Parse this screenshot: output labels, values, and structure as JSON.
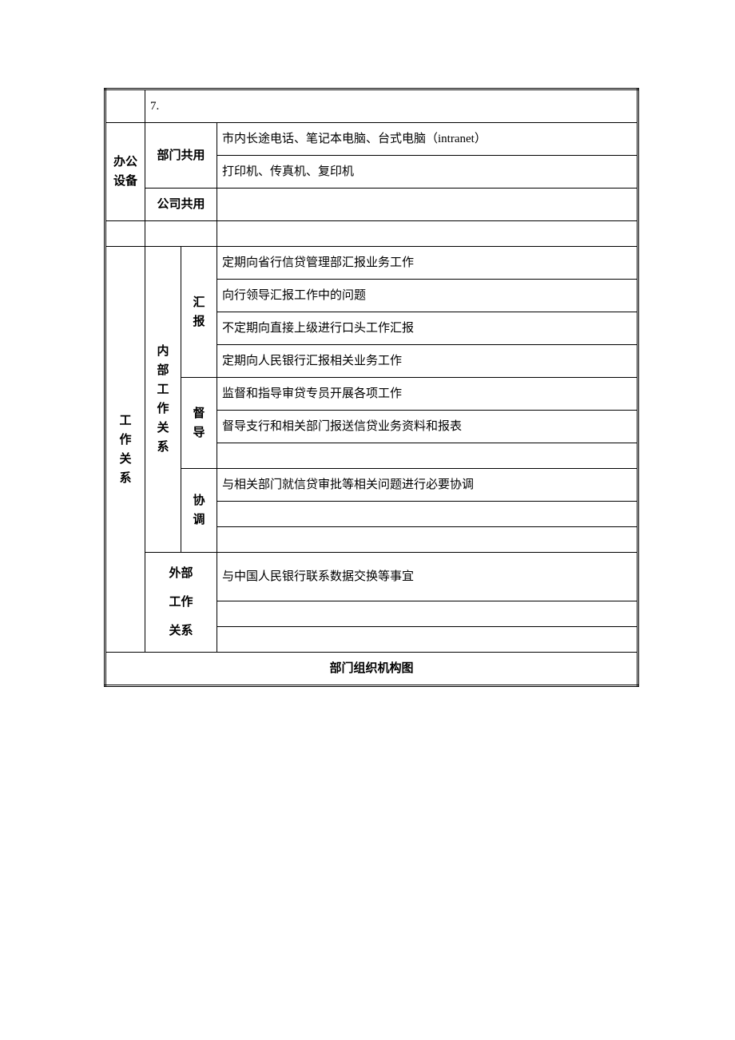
{
  "row1": {
    "num": "7."
  },
  "office_equipment": {
    "label": "办公设备",
    "dept_shared_label": "部门共用",
    "dept_shared_items": [
      "市内长途电话、笔记本电脑、台式电脑（intranet）",
      "打印机、传真机、复印机"
    ],
    "company_shared_label": "公司共用",
    "company_shared_item": ""
  },
  "spacer_row": "",
  "work_relations": {
    "label": "工作关系",
    "internal_label": "内部工作关系",
    "report_label": "汇报",
    "report_items": [
      "定期向省行信贷管理部汇报业务工作",
      "向行领导汇报工作中的问题",
      "不定期向直接上级进行口头工作汇报",
      "定期向人民银行汇报相关业务工作"
    ],
    "supervise_label": "督导",
    "supervise_items": [
      "监督和指导审贷专员开展各项工作",
      "督导支行和相关部门报送信贷业务资料和报表",
      ""
    ],
    "coordinate_label": "协调",
    "coordinate_items": [
      "与相关部门就信贷审批等相关问题进行必要协调",
      "",
      ""
    ],
    "external_label": "外部工作关系",
    "external_items": [
      "与中国人民银行联系数据交换等事宜",
      "",
      ""
    ]
  },
  "footer_title": "部门组织机构图"
}
